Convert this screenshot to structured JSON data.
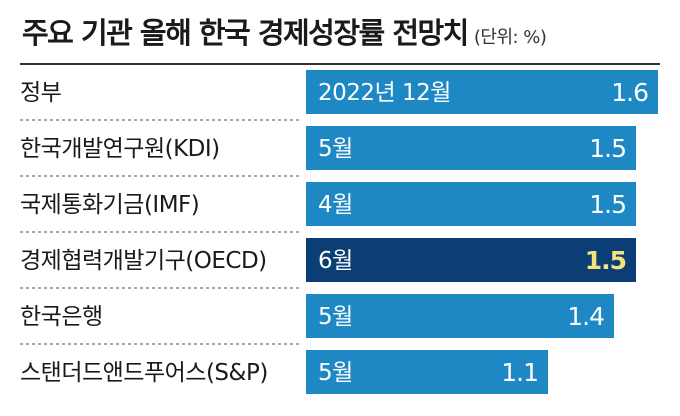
{
  "header": {
    "title": "주요 기관 올해 한국 경제성장률 전망치",
    "unit": "(단위: %)"
  },
  "colors": {
    "bar": "#1e88c4",
    "bar_highlight": "#0b3e74",
    "value_highlight": "#f7e27a"
  },
  "chart_data": {
    "type": "bar",
    "orientation": "horizontal",
    "title": "주요 기관 올해 한국 경제성장률 전망치",
    "unit": "(단위: %)",
    "xlim": [
      0,
      1.6
    ],
    "grid": false,
    "categories": [
      "정부",
      "한국개발연구원(KDI)",
      "국제통화기금(IMF)",
      "경제협력개발기구(OECD)",
      "한국은행",
      "스탠더드앤드푸어스(S&P)"
    ],
    "dates": [
      "2022년 12월",
      "5월",
      "4월",
      "6월",
      "5월",
      "5월"
    ],
    "values": [
      1.6,
      1.5,
      1.5,
      1.5,
      1.4,
      1.1
    ],
    "value_labels": [
      "1.6",
      "1.5",
      "1.5",
      "1.5",
      "1.4",
      "1.1"
    ],
    "highlighted": [
      false,
      false,
      false,
      true,
      false,
      false
    ]
  }
}
